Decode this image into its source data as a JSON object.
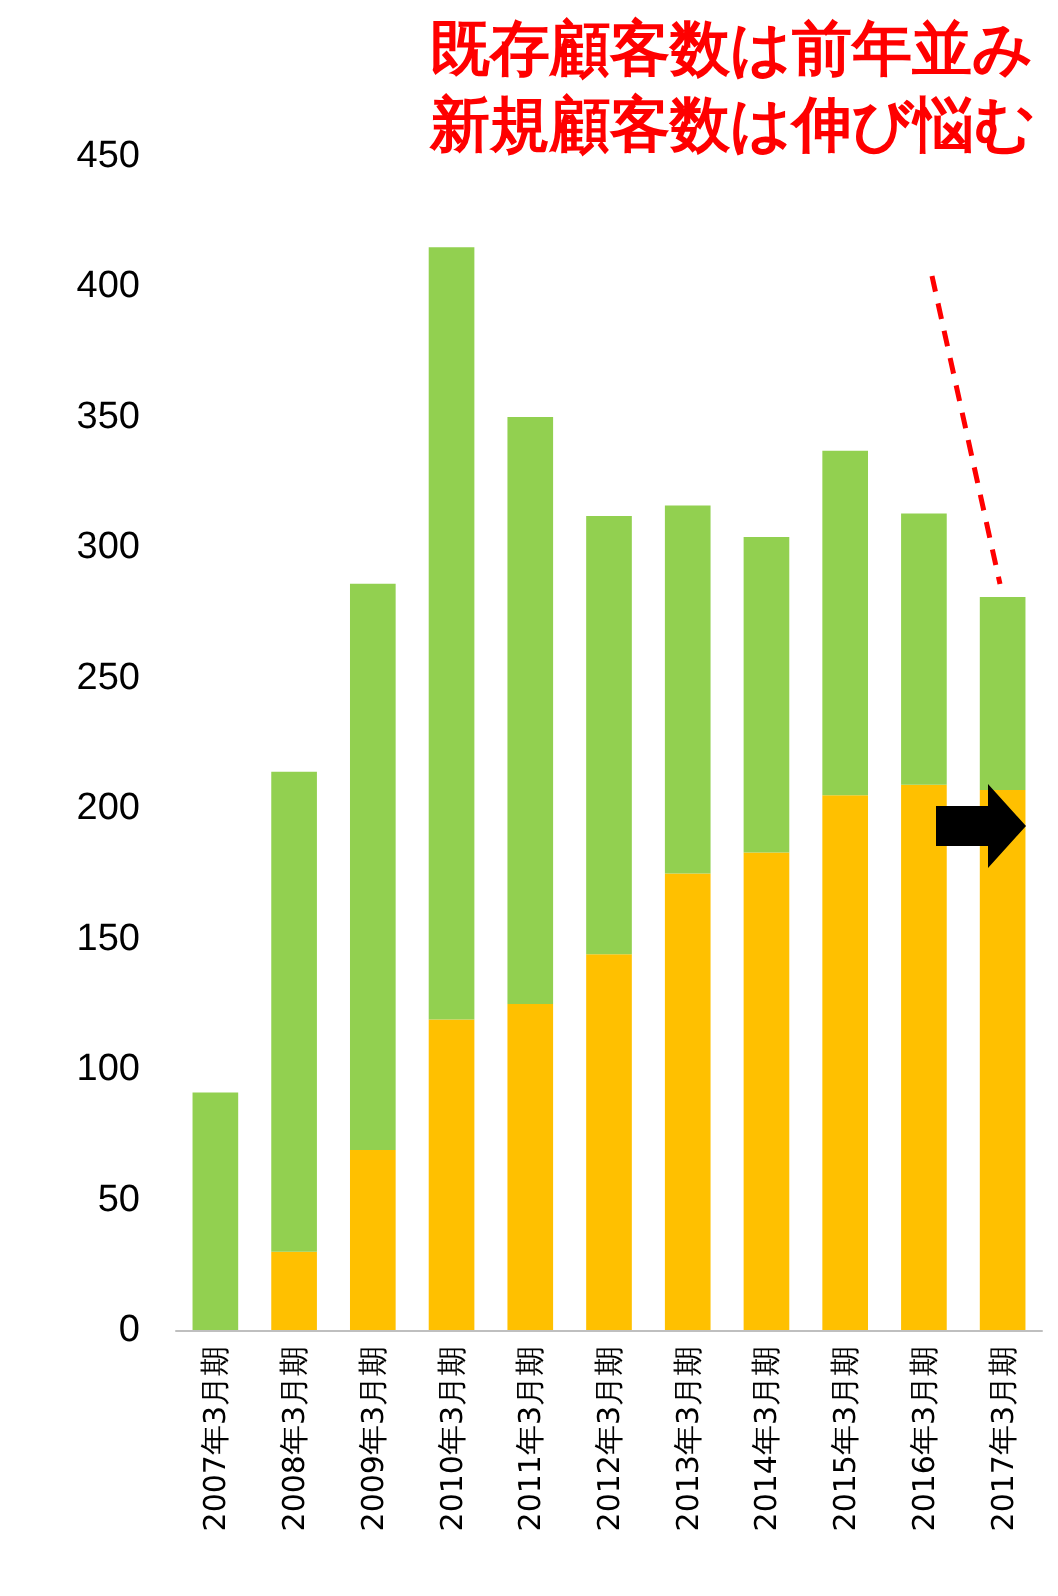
{
  "chart_data": {
    "type": "bar",
    "title": "既存顧客数は前年並み",
    "subtitle": "新規顧客数は伸び悩む",
    "categories": [
      "2007年3月期",
      "2008年3月期",
      "2009年3月期",
      "2010年3月期",
      "2011年3月期",
      "2012年3月期",
      "2013年3月期",
      "2014年3月期",
      "2015年3月期",
      "2016年3月期",
      "2017年3月期"
    ],
    "stacked": true,
    "series": [
      {
        "color": "#ffc000",
        "values": [
          0,
          30,
          69,
          119,
          125,
          144,
          175,
          183,
          205,
          209,
          207
        ]
      },
      {
        "color": "#92d050",
        "values": [
          91,
          184,
          217,
          296,
          225,
          168,
          141,
          121,
          132,
          104,
          74
        ]
      }
    ],
    "ylim": [
      0,
      450
    ],
    "yticks": [
      0,
      50,
      100,
      150,
      200,
      250,
      300,
      350,
      400,
      450
    ],
    "grid": false
  }
}
